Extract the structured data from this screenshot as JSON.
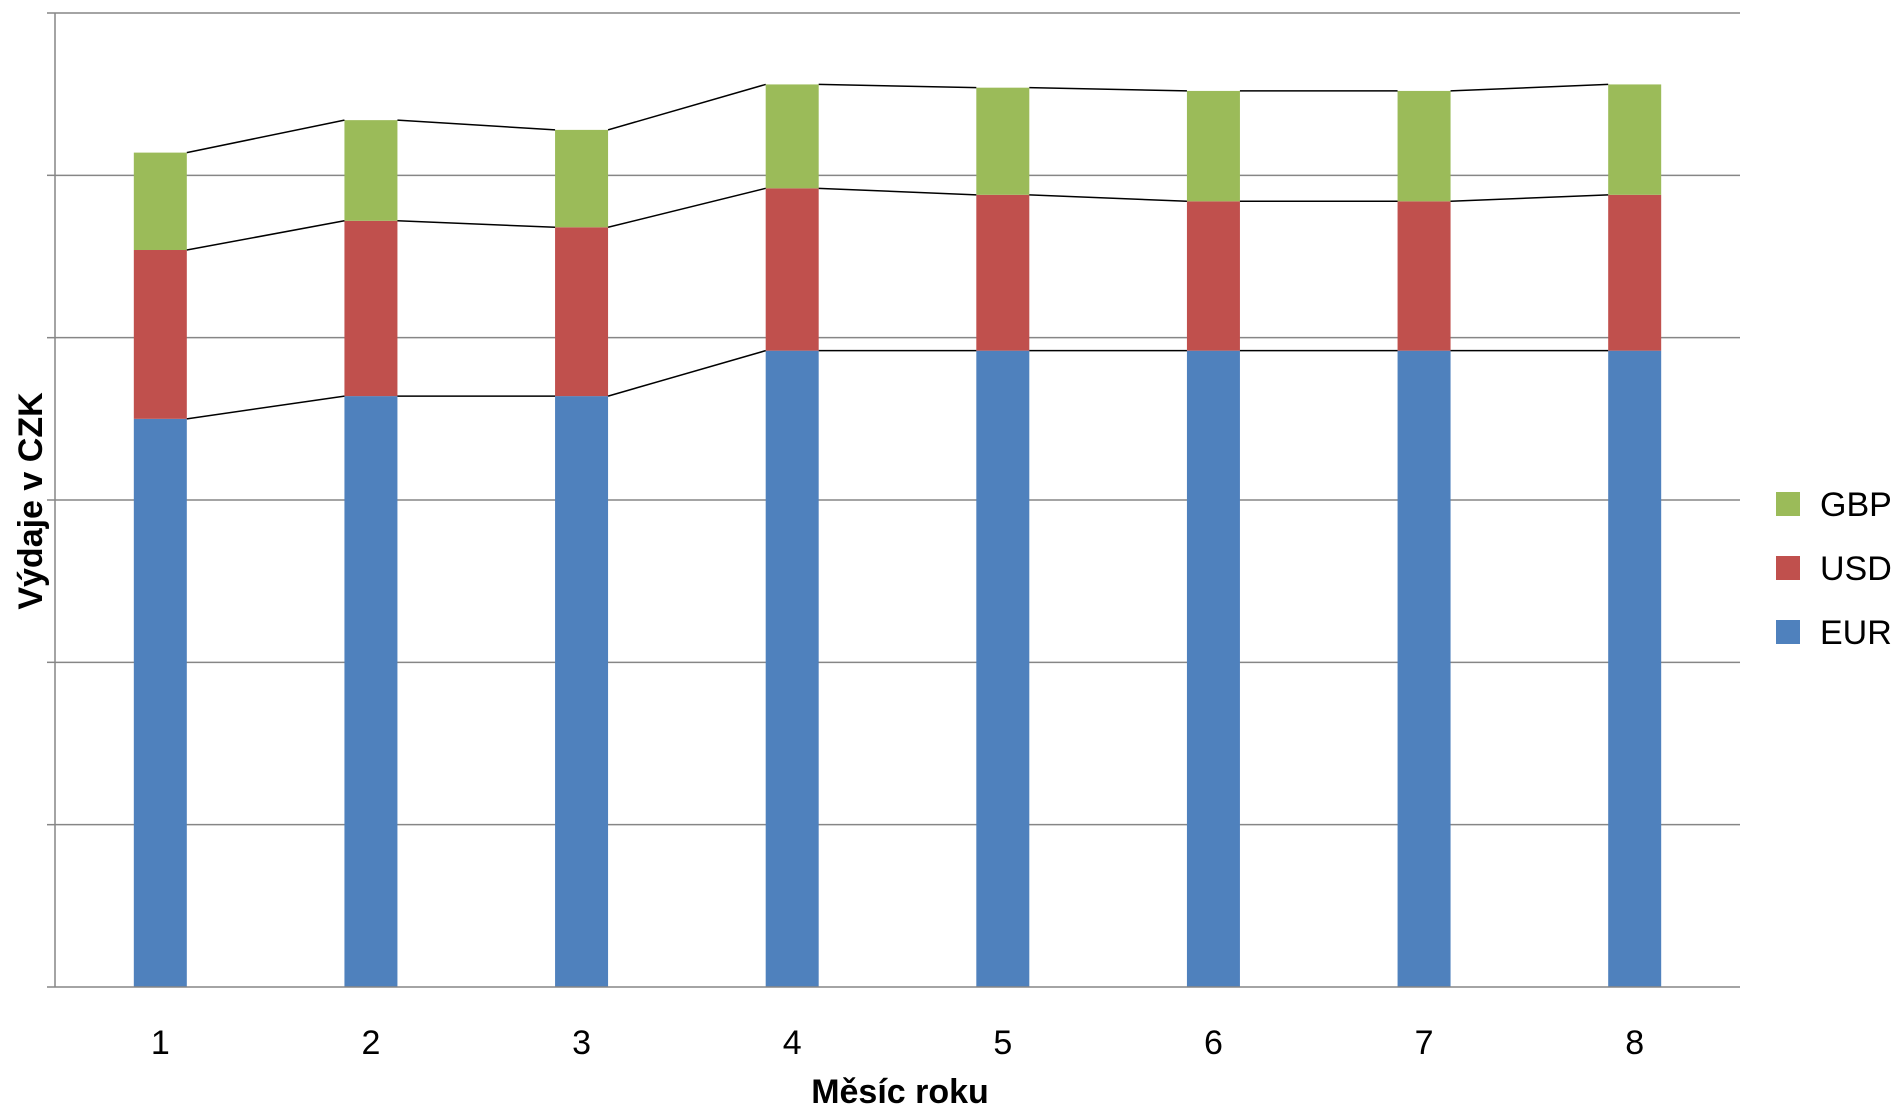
{
  "chart_data": {
    "type": "bar",
    "stacked": true,
    "series_lines": true,
    "title": "",
    "xlabel": "Měsíc roku",
    "ylabel": "Výdaje v CZK",
    "categories": [
      "1",
      "2",
      "3",
      "4",
      "5",
      "6",
      "7",
      "8"
    ],
    "ylim": [
      0,
      6
    ],
    "y_gridlines": 6,
    "y_tick_labels_shown": false,
    "grid": true,
    "legend_position": "right",
    "legend_order": [
      "GBP",
      "USD",
      "EUR"
    ],
    "series": [
      {
        "name": "EUR",
        "color": "#4F81BD",
        "values": [
          3.5,
          3.64,
          3.64,
          3.92,
          3.92,
          3.92,
          3.92,
          3.92
        ]
      },
      {
        "name": "USD",
        "color": "#C0504D",
        "values": [
          1.04,
          1.08,
          1.04,
          1.0,
          0.96,
          0.92,
          0.92,
          0.96
        ]
      },
      {
        "name": "GBP",
        "color": "#9BBB59",
        "values": [
          0.6,
          0.62,
          0.6,
          0.64,
          0.66,
          0.68,
          0.68,
          0.68
        ]
      }
    ]
  }
}
